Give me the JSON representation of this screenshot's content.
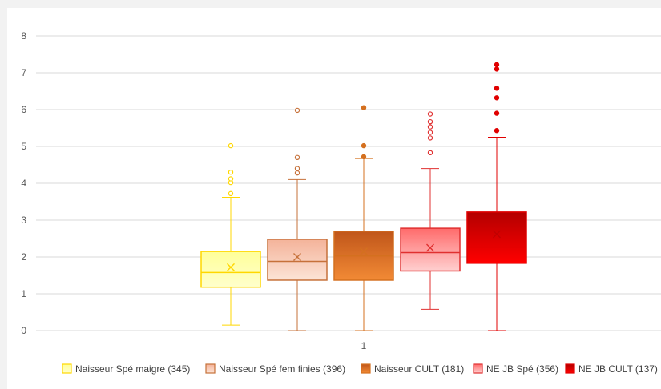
{
  "chart_data": {
    "type": "box",
    "categories": [
      "1"
    ],
    "ylim": [
      0,
      8
    ],
    "y_ticks": [
      0,
      1,
      2,
      3,
      4,
      5,
      6,
      7,
      8
    ],
    "grid": true,
    "legend_position": "bottom",
    "series": [
      {
        "name": "Naisseur Spé maigre (345)",
        "color": "#ffd700",
        "fill_top": "#ffff99",
        "fill_bottom": "#ffffcc",
        "min": 0.15,
        "q1": 1.18,
        "median": 1.58,
        "q3": 2.15,
        "max": 3.62,
        "mean": 1.72,
        "outliers": [
          3.72,
          4.02,
          4.12,
          4.3,
          5.02
        ],
        "outlier_style": "hollow"
      },
      {
        "name": "Naisseur Spé fem finies (396)",
        "color": "#c6713a",
        "fill_top": "#f4b39a",
        "fill_bottom": "#fce4d6",
        "min": 0.0,
        "q1": 1.37,
        "median": 1.88,
        "q3": 2.48,
        "max": 4.1,
        "mean": 2.0,
        "outliers": [
          4.28,
          4.4,
          4.7,
          5.98
        ],
        "outlier_style": "hollow"
      },
      {
        "name": "Naisseur CULT (181)",
        "color": "#d4701f",
        "fill_top": "#c0561a",
        "fill_bottom": "#f28a35",
        "min": 0.0,
        "q1": 1.37,
        "median": 2.03,
        "q3": 2.7,
        "max": 4.67,
        "mean": 2.15,
        "outliers": [
          4.72,
          5.02,
          6.05
        ],
        "outlier_style": "solid"
      },
      {
        "name": "NE JB Spé (356)",
        "color": "#e03030",
        "fill_top": "#ff6b6b",
        "fill_bottom": "#ffd0d0",
        "min": 0.58,
        "q1": 1.62,
        "median": 2.12,
        "q3": 2.78,
        "max": 4.4,
        "mean": 2.25,
        "outliers": [
          4.83,
          5.23,
          5.38,
          5.53,
          5.67,
          5.88
        ],
        "outlier_style": "hollow"
      },
      {
        "name": "NE JB CULT (137)",
        "color": "#e00000",
        "fill_top": "#b30000",
        "fill_bottom": "#ff0000",
        "min": 0.0,
        "q1": 1.83,
        "median": 2.27,
        "q3": 3.22,
        "max": 5.25,
        "mean": 2.62,
        "outliers": [
          5.43,
          5.9,
          6.32,
          6.58,
          7.1,
          7.22
        ],
        "outlier_style": "solid"
      }
    ]
  }
}
